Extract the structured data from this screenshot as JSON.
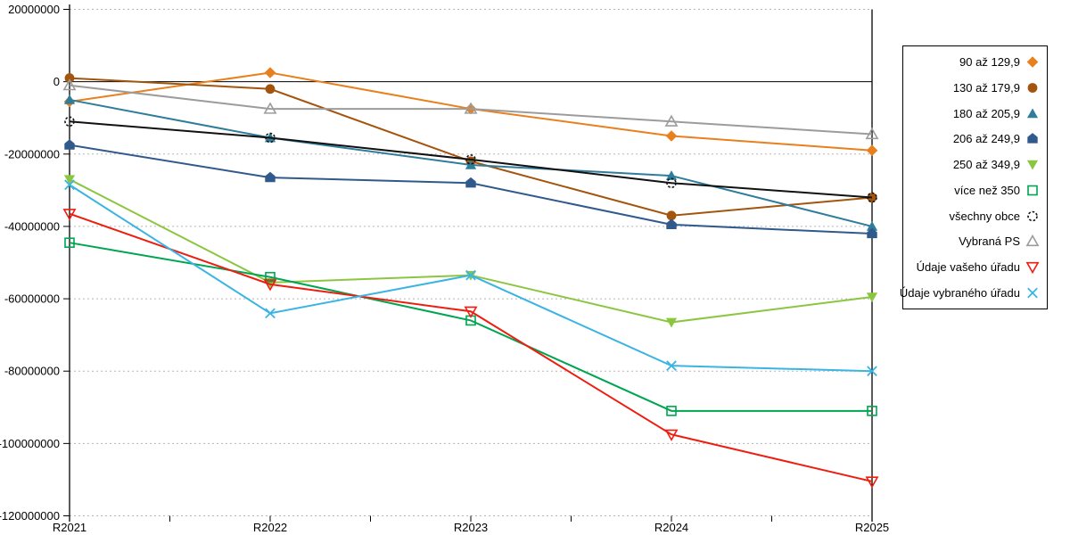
{
  "chart_data": {
    "type": "line",
    "title": "",
    "xlabel": "",
    "ylabel": "",
    "x_categories": [
      "R2021",
      "R2022",
      "R2023",
      "R2024",
      "R2025"
    ],
    "ylim": [
      -120000000,
      20000000
    ],
    "grid": "horizontal-dashed",
    "zero_line": true,
    "legend_position": "top-right",
    "yticks": [
      {
        "value": 20000000,
        "label": "20000000"
      },
      {
        "value": 0,
        "label": "0"
      },
      {
        "value": -20000000,
        "label": "-20000000"
      },
      {
        "value": -40000000,
        "label": "-40000000"
      },
      {
        "value": -60000000,
        "label": "-60000000"
      },
      {
        "value": -80000000,
        "label": "-80000000"
      },
      {
        "value": -100000000,
        "label": "-100000000"
      },
      {
        "value": -120000000,
        "label": "-120000000"
      }
    ],
    "series": [
      {
        "name": "90 až 129,9",
        "color": "#E8801E",
        "marker": "diamond",
        "filled": true,
        "values": [
          -5500000,
          2500000,
          -7500000,
          -15000000,
          -19000000
        ]
      },
      {
        "name": "130 až 179,9",
        "color": "#A3550E",
        "marker": "circle",
        "filled": true,
        "values": [
          1000000,
          -2000000,
          -22000000,
          -37000000,
          -32000000
        ]
      },
      {
        "name": "180 až 205,9",
        "color": "#2E7D9B",
        "marker": "triangle-up",
        "filled": true,
        "values": [
          -5000000,
          -15500000,
          -23000000,
          -26000000,
          -40000000
        ]
      },
      {
        "name": "206 až 249,9",
        "color": "#30598C",
        "marker": "pentagon",
        "filled": true,
        "values": [
          -17500000,
          -26500000,
          -28000000,
          -39500000,
          -42000000
        ]
      },
      {
        "name": "250 až 349,9",
        "color": "#8CC641",
        "marker": "triangle-down",
        "filled": true,
        "values": [
          -27000000,
          -55500000,
          -53500000,
          -66500000,
          -59500000
        ]
      },
      {
        "name": "více než 350",
        "color": "#00A551",
        "marker": "square",
        "filled": false,
        "values": [
          -44500000,
          -54000000,
          -66000000,
          -91000000,
          -91000000
        ]
      },
      {
        "name": "všechny obce",
        "color": "#111111",
        "marker": "circle",
        "filled": false,
        "dashed_marker": true,
        "values": [
          -11000000,
          -15500000,
          -21500000,
          -28000000,
          -32000000
        ]
      },
      {
        "name": "Vybraná PS",
        "color": "#9C9C9C",
        "marker": "triangle-up",
        "filled": false,
        "values": [
          -1000000,
          -7500000,
          -7500000,
          -11000000,
          -14500000
        ]
      },
      {
        "name": "Údaje vašeho úřadu",
        "color": "#EE1D0F",
        "marker": "triangle-down",
        "filled": false,
        "values": [
          -36500000,
          -56000000,
          -63500000,
          -97500000,
          -110500000
        ]
      },
      {
        "name": "Údaje vybraného úřadu",
        "color": "#3AB4E3",
        "marker": "x",
        "filled": false,
        "values": [
          -28500000,
          -64000000,
          -53500000,
          -78500000,
          -80000000
        ]
      }
    ]
  }
}
